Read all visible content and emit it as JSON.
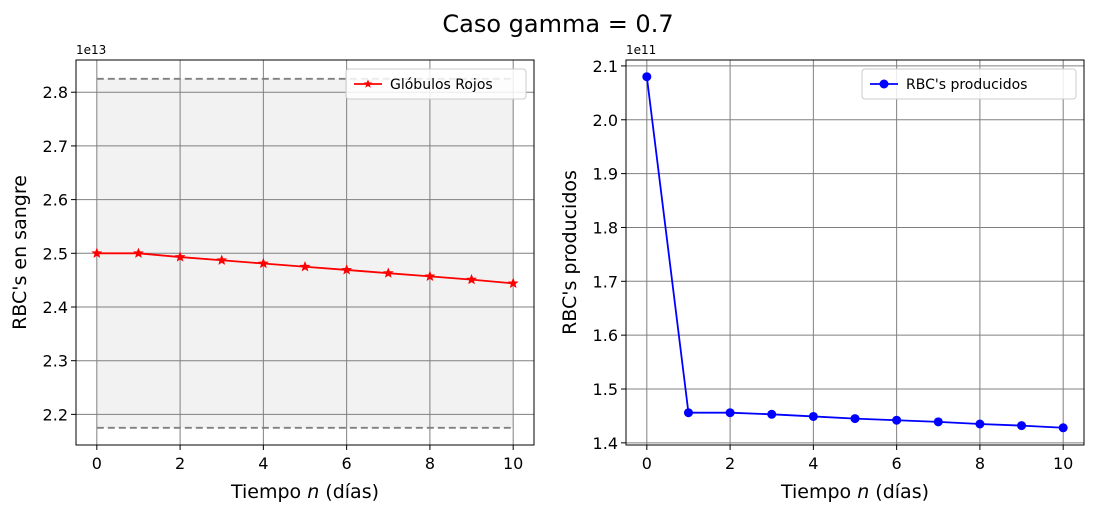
{
  "figure": {
    "title": "Caso gamma = 0.7"
  },
  "chart_data": [
    {
      "type": "line",
      "title": "",
      "xlabel": "Tiempo n (días)",
      "xlabel_parts": [
        "Tiempo ",
        "n",
        " (días)"
      ],
      "ylabel": "RBC's en sangre",
      "offset_text": "1e13",
      "xlim": [
        -0.5,
        10.5
      ],
      "ylim": [
        2.143,
        2.86
      ],
      "xticks": [
        0,
        2,
        4,
        6,
        8,
        10
      ],
      "xtick_labels": [
        "0",
        "2",
        "4",
        "6",
        "8",
        "10"
      ],
      "yticks": [
        2.2,
        2.3,
        2.4,
        2.5,
        2.6,
        2.7,
        2.8
      ],
      "ytick_labels": [
        "2.2",
        "2.3",
        "2.4",
        "2.5",
        "2.6",
        "2.7",
        "2.8"
      ],
      "grid": true,
      "legend_position": "upper right",
      "band": {
        "lower": 2.175,
        "upper": 2.825,
        "x_range": [
          0,
          10
        ],
        "color": "#f2f2f2",
        "line_color": "#808080",
        "line_style": "dashed"
      },
      "series": [
        {
          "name": "Glóbulos Rojos",
          "color": "#ff0000",
          "marker": "star",
          "x": [
            0,
            1,
            2,
            3,
            4,
            5,
            6,
            7,
            8,
            9,
            10
          ],
          "y": [
            2.5,
            2.5,
            2.493,
            2.487,
            2.481,
            2.475,
            2.469,
            2.463,
            2.457,
            2.451,
            2.444
          ]
        }
      ]
    },
    {
      "type": "line",
      "title": "",
      "xlabel": "Tiempo n (días)",
      "xlabel_parts": [
        "Tiempo ",
        "n",
        " (días)"
      ],
      "ylabel": "RBC's producidos",
      "offset_text": "1e11",
      "xlim": [
        -0.5,
        10.5
      ],
      "ylim": [
        1.396,
        2.111
      ],
      "xticks": [
        0,
        2,
        4,
        6,
        8,
        10
      ],
      "xtick_labels": [
        "0",
        "2",
        "4",
        "6",
        "8",
        "10"
      ],
      "yticks": [
        1.4,
        1.5,
        1.6,
        1.7,
        1.8,
        1.9,
        2.0,
        2.1
      ],
      "ytick_labels": [
        "1.4",
        "1.5",
        "1.6",
        "1.7",
        "1.8",
        "1.9",
        "2.0",
        "2.1"
      ],
      "grid": true,
      "legend_position": "upper right",
      "series": [
        {
          "name": "RBC's producidos",
          "color": "#0000ff",
          "marker": "circle",
          "x": [
            0,
            1,
            2,
            3,
            4,
            5,
            6,
            7,
            8,
            9,
            10
          ],
          "y": [
            2.08,
            1.456,
            1.456,
            1.453,
            1.449,
            1.445,
            1.442,
            1.439,
            1.435,
            1.432,
            1.428
          ]
        }
      ]
    }
  ]
}
